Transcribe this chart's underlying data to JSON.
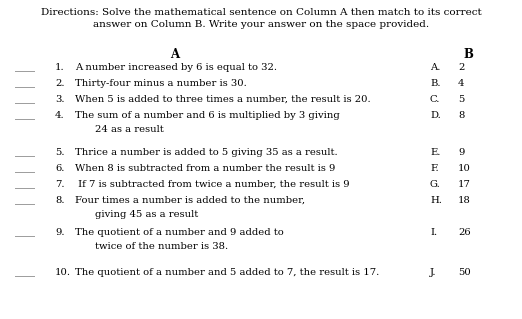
{
  "directions_line1": "Directions: Solve the mathematical sentence on Column A then match to its correct",
  "directions_line2": "answer on Column B. Write your answer on the space provided.",
  "col_a_header": "A",
  "col_b_header": "B",
  "col_a_items": [
    {
      "num": "1.",
      "text": "A number increased by 6 is equal to 32.",
      "continuation": null
    },
    {
      "num": "2.",
      "text": "Thirty-four minus a number is 30.",
      "continuation": null
    },
    {
      "num": "3.",
      "text": "When 5 is added to three times a number, the result is 20.",
      "continuation": null
    },
    {
      "num": "4.",
      "text": "The sum of a number and 6 is multiplied by 3 giving",
      "continuation": "24 as a result"
    },
    {
      "num": "5.",
      "text": "Thrice a number is added to 5 giving 35 as a result.",
      "continuation": null
    },
    {
      "num": "6.",
      "text": "When 8 is subtracted from a number the result is 9",
      "continuation": null
    },
    {
      "num": "7.",
      "text": " If 7 is subtracted from twice a number, the result is 9",
      "continuation": null
    },
    {
      "num": "8.",
      "text": "Four times a number is added to the number,",
      "continuation": "giving 45 as a result"
    },
    {
      "num": "9.",
      "text": "The quotient of a number and 9 added to",
      "continuation": "twice of the number is 38."
    },
    {
      "num": "10.",
      "text": "The quotient of a number and 5 added to 7, the result is 17.",
      "continuation": null
    }
  ],
  "col_b_items": [
    {
      "letter": "A.",
      "value": "2"
    },
    {
      "letter": "B.",
      "value": "4"
    },
    {
      "letter": "C.",
      "value": "5"
    },
    {
      "letter": "D.",
      "value": "8"
    },
    {
      "letter": "E.",
      "value": "9"
    },
    {
      "letter": "F.",
      "value": "10"
    },
    {
      "letter": "G.",
      "value": "17"
    },
    {
      "letter": "H.",
      "value": "18"
    },
    {
      "letter": "I.",
      "value": "26"
    },
    {
      "letter": "J.",
      "value": "50"
    }
  ],
  "bg_color": "#ffffff",
  "text_color": "#000000",
  "font_size_directions": 7.5,
  "font_size_header": 8.5,
  "font_size_body": 7.2,
  "blank_str": "____"
}
